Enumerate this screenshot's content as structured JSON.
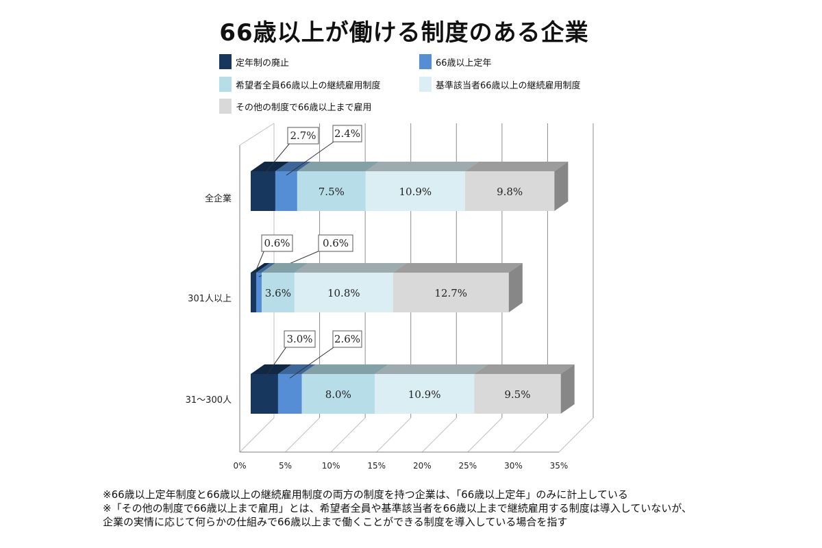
{
  "title": "66歳以上が働ける制度のある企業",
  "legend": [
    {
      "label": "定年制の廃止",
      "color": "#17375e"
    },
    {
      "label": "66歳以上定年",
      "color": "#558ed5"
    },
    {
      "label": "希望者全員66歳以上の継続雇用制度",
      "color": "#b7dee8"
    },
    {
      "label": "基準該当者66歳以上の継続雇用制度",
      "color": "#daeef3"
    },
    {
      "label": "その他の制度で66歳以上まで雇用",
      "color": "#d9d9d9"
    }
  ],
  "chart_data": {
    "type": "bar",
    "orientation": "horizontal",
    "stacked": true,
    "categories": [
      "全企業",
      "301人以上",
      "31～300人"
    ],
    "series": [
      {
        "name": "定年制の廃止",
        "values": [
          2.7,
          0.6,
          3.0
        ],
        "labels": [
          "2.7%",
          "0.6%",
          "3.0%"
        ]
      },
      {
        "name": "66歳以上定年",
        "values": [
          2.4,
          0.6,
          2.6
        ],
        "labels": [
          "2.4%",
          "0.6%",
          "2.6%"
        ]
      },
      {
        "name": "希望者全員66歳以上の継続雇用制度",
        "values": [
          7.5,
          3.6,
          8.0
        ],
        "labels": [
          "7.5%",
          "3.6%",
          "8.0%"
        ]
      },
      {
        "name": "基準該当者66歳以上の継続雇用制度",
        "values": [
          10.9,
          10.8,
          10.9
        ],
        "labels": [
          "10.9%",
          "10.8%",
          "10.9%"
        ]
      },
      {
        "name": "その他の制度で66歳以上まで雇用",
        "values": [
          9.8,
          12.7,
          9.5
        ],
        "labels": [
          "9.8%",
          "12.7%",
          "9.5%"
        ]
      }
    ],
    "xlim": [
      0,
      35
    ],
    "xticks": [
      0,
      5,
      10,
      15,
      20,
      25,
      30,
      35
    ],
    "xtick_labels": [
      "0%",
      "5%",
      "10%",
      "15%",
      "20%",
      "25%",
      "30%",
      "35%"
    ],
    "grid": true,
    "legend_position": "top"
  },
  "notes": [
    "※66歳以上定年制度と66歳以上の継続雇用制度の両方の制度を持つ企業は、「66歳以上定年」のみに計上している",
    "※「その他の制度で66歳以上まで雇用」とは、希望者全員や基準該当者を66歳以上まで継続雇用する制度は導入していないが、",
    "企業の実情に応じて何らかの仕組みで66歳以上まで働くことができる制度を導入している場合を指す"
  ]
}
